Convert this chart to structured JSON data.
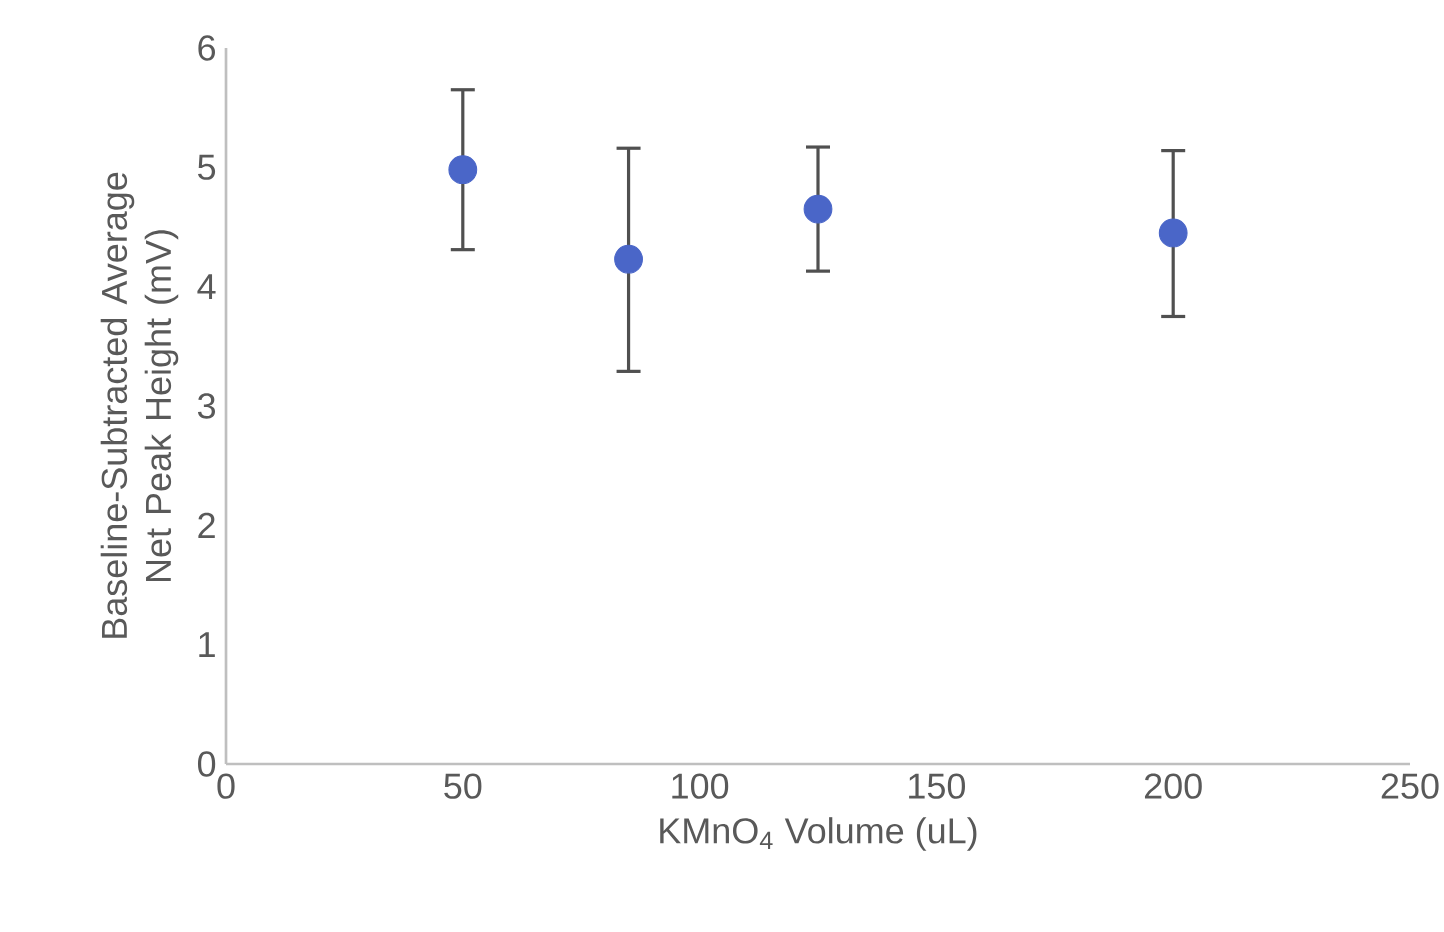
{
  "chart_data": {
    "type": "scatter",
    "xlabel": "KMnO$_{4}$ Volume (uL)",
    "ylabel": "Baseline-Subtracted Average Net Peak Height (mV)",
    "x": [
      50,
      85,
      125,
      200
    ],
    "values": [
      4.98,
      4.23,
      4.65,
      4.45
    ],
    "errors": [
      [
        4.31,
        5.65
      ],
      [
        3.29,
        5.16
      ],
      [
        4.13,
        5.17
      ],
      [
        3.75,
        5.14
      ]
    ],
    "color": "#4a66c8",
    "marker": "circle",
    "xlim": [
      0,
      250
    ],
    "ylim": [
      0,
      6
    ],
    "xticks": [
      0,
      50,
      100,
      150,
      200,
      250
    ],
    "yticks": [
      0,
      1,
      2,
      3,
      4,
      5,
      6
    ]
  }
}
